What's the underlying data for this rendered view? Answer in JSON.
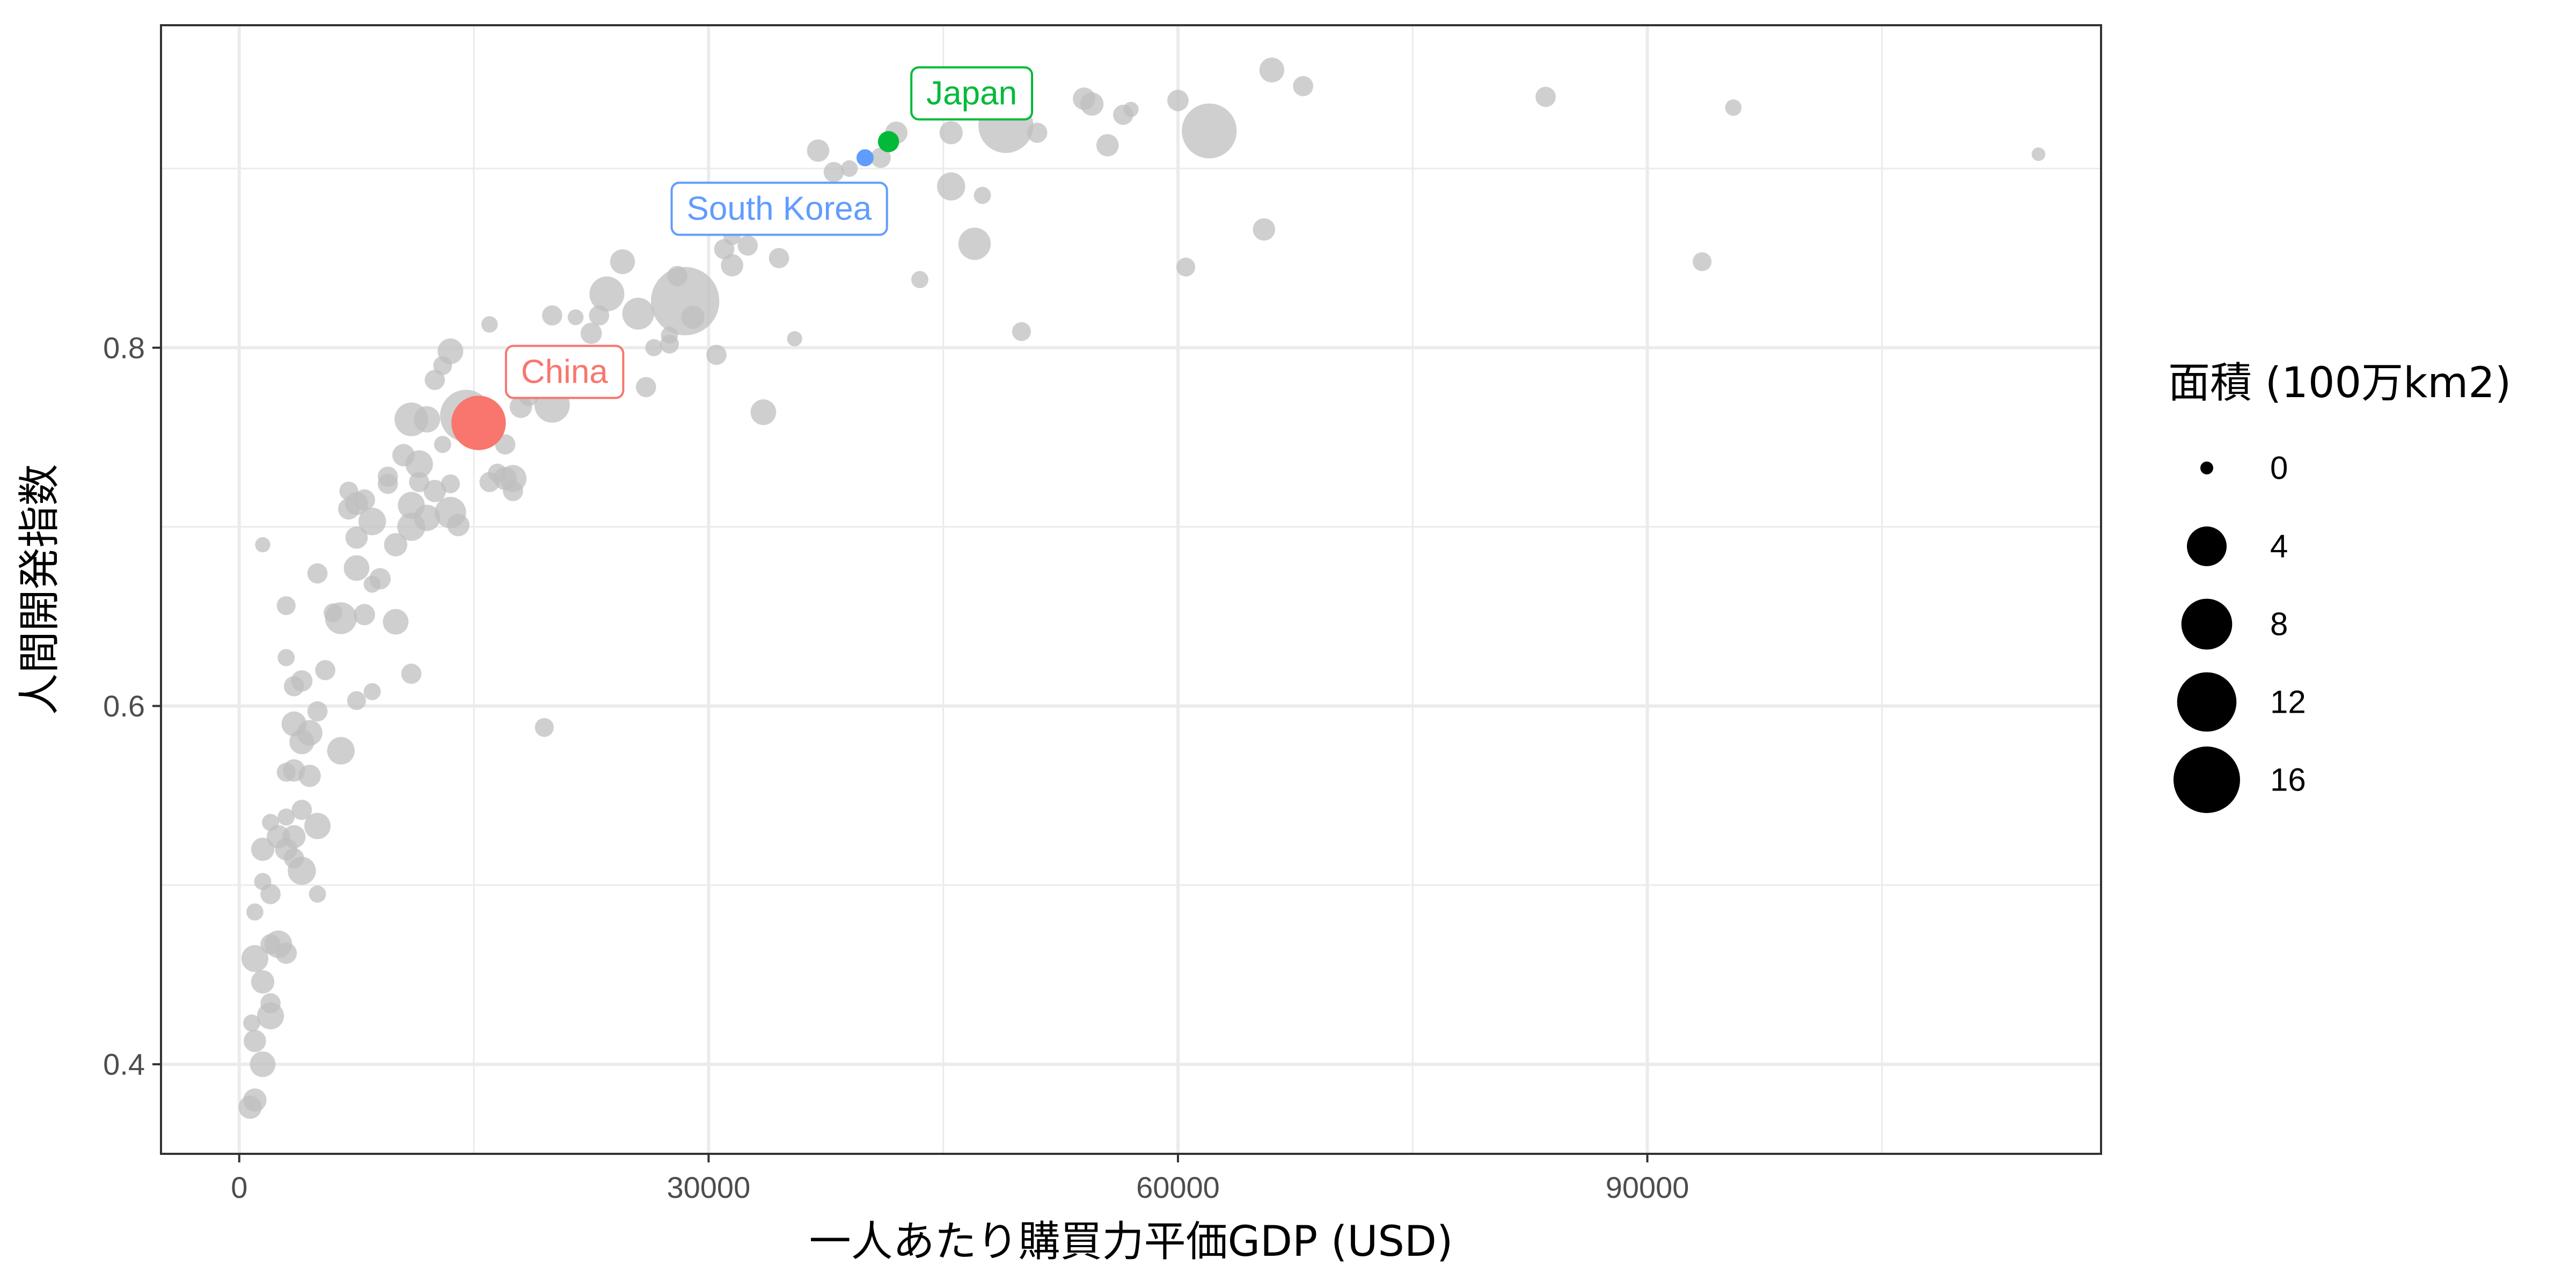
{
  "chart_data": {
    "type": "scatter",
    "xlabel": "一人あたり購買力平価GDP (USD)",
    "ylabel": "人間開発指数",
    "xlim": [
      -5000,
      119000
    ],
    "ylim": [
      0.35,
      0.98
    ],
    "x_ticks": [
      0,
      30000,
      60000,
      90000
    ],
    "x_tick_labels": [
      "0",
      "30000",
      "60000",
      "90000"
    ],
    "y_ticks": [
      0.4,
      0.6,
      0.8
    ],
    "y_tick_labels": [
      "0.4",
      "0.6",
      "0.8"
    ],
    "grid": true,
    "legend": {
      "title": "面積 (100万km2)",
      "position": "right",
      "entries": [
        {
          "label": "0",
          "value": 0
        },
        {
          "label": "4",
          "value": 4
        },
        {
          "label": "8",
          "value": 8
        },
        {
          "label": "12",
          "value": 12
        },
        {
          "label": "16",
          "value": 16
        }
      ]
    },
    "colors": {
      "background_point": "#bfbfbf",
      "China": "#F8766D",
      "Japan": "#00BA38",
      "South Korea": "#619CFF"
    },
    "highlighted": [
      {
        "label": "China",
        "x": 15300,
        "y": 0.758,
        "area": 9.6
      },
      {
        "label": "Japan",
        "x": 41500,
        "y": 0.915,
        "area": 0.38
      },
      {
        "label": "South Korea",
        "x": 40000,
        "y": 0.906,
        "area": 0.1
      }
    ],
    "points": [
      {
        "x": 115000,
        "y": 0.908,
        "area": 0.003
      },
      {
        "x": 95500,
        "y": 0.934,
        "area": 0.07
      },
      {
        "x": 93500,
        "y": 0.848,
        "area": 0.2
      },
      {
        "x": 83500,
        "y": 0.94,
        "area": 0.3
      },
      {
        "x": 68000,
        "y": 0.946,
        "area": 0.3
      },
      {
        "x": 66000,
        "y": 0.955,
        "area": 0.8
      },
      {
        "x": 65500,
        "y": 0.866,
        "area": 0.5
      },
      {
        "x": 62000,
        "y": 0.921,
        "area": 9.8
      },
      {
        "x": 60500,
        "y": 0.845,
        "area": 0.2
      },
      {
        "x": 60000,
        "y": 0.938,
        "area": 0.4
      },
      {
        "x": 57000,
        "y": 0.933,
        "area": 0.03
      },
      {
        "x": 56500,
        "y": 0.93,
        "area": 0.3
      },
      {
        "x": 55500,
        "y": 0.913,
        "area": 0.5
      },
      {
        "x": 54500,
        "y": 0.936,
        "area": 0.6
      },
      {
        "x": 54000,
        "y": 0.939,
        "area": 0.5
      },
      {
        "x": 51000,
        "y": 0.92,
        "area": 0.3
      },
      {
        "x": 50000,
        "y": 0.809,
        "area": 0.2
      },
      {
        "x": 49000,
        "y": 0.924,
        "area": 9.8
      },
      {
        "x": 47500,
        "y": 0.885,
        "area": 0.1
      },
      {
        "x": 47000,
        "y": 0.858,
        "area": 2.1
      },
      {
        "x": 45500,
        "y": 0.89,
        "area": 1.3
      },
      {
        "x": 45500,
        "y": 0.92,
        "area": 0.6
      },
      {
        "x": 43500,
        "y": 0.838,
        "area": 0.1
      },
      {
        "x": 42000,
        "y": 0.92,
        "area": 0.5
      },
      {
        "x": 41000,
        "y": 0.906,
        "area": 0.3
      },
      {
        "x": 39000,
        "y": 0.9,
        "area": 0.08
      },
      {
        "x": 38000,
        "y": 0.898,
        "area": 0.3
      },
      {
        "x": 37000,
        "y": 0.91,
        "area": 0.5
      },
      {
        "x": 35500,
        "y": 0.805,
        "area": 0.03
      },
      {
        "x": 34500,
        "y": 0.85,
        "area": 0.3
      },
      {
        "x": 33500,
        "y": 0.764,
        "area": 0.9
      },
      {
        "x": 32500,
        "y": 0.857,
        "area": 0.3
      },
      {
        "x": 31500,
        "y": 0.846,
        "area": 0.5
      },
      {
        "x": 31500,
        "y": 0.862,
        "area": 0.1
      },
      {
        "x": 31000,
        "y": 0.855,
        "area": 0.3
      },
      {
        "x": 30500,
        "y": 0.796,
        "area": 0.3
      },
      {
        "x": 29000,
        "y": 0.817,
        "area": 0.6
      },
      {
        "x": 28500,
        "y": 0.826,
        "area": 17.1
      },
      {
        "x": 28000,
        "y": 0.84,
        "area": 0.3
      },
      {
        "x": 27500,
        "y": 0.807,
        "area": 0.1
      },
      {
        "x": 27500,
        "y": 0.802,
        "area": 0.2
      },
      {
        "x": 26500,
        "y": 0.8,
        "area": 0.1
      },
      {
        "x": 26000,
        "y": 0.778,
        "area": 0.3
      },
      {
        "x": 25500,
        "y": 0.819,
        "area": 2.0
      },
      {
        "x": 24500,
        "y": 0.848,
        "area": 0.8
      },
      {
        "x": 23500,
        "y": 0.83,
        "area": 2.7
      },
      {
        "x": 23000,
        "y": 0.818,
        "area": 0.3
      },
      {
        "x": 22500,
        "y": 0.808,
        "area": 0.4
      },
      {
        "x": 21500,
        "y": 0.817,
        "area": 0.05
      },
      {
        "x": 20000,
        "y": 0.818,
        "area": 0.3
      },
      {
        "x": 20000,
        "y": 0.768,
        "area": 2.8
      },
      {
        "x": 19500,
        "y": 0.588,
        "area": 0.2
      },
      {
        "x": 18500,
        "y": 0.773,
        "area": 0.3
      },
      {
        "x": 18000,
        "y": 0.767,
        "area": 0.5
      },
      {
        "x": 17500,
        "y": 0.72,
        "area": 0.3
      },
      {
        "x": 17500,
        "y": 0.727,
        "area": 1.1
      },
      {
        "x": 17000,
        "y": 0.727,
        "area": 0.6
      },
      {
        "x": 17000,
        "y": 0.746,
        "area": 0.3
      },
      {
        "x": 16500,
        "y": 0.73,
        "area": 0.2
      },
      {
        "x": 16000,
        "y": 0.725,
        "area": 0.3
      },
      {
        "x": 16000,
        "y": 0.813,
        "area": 0.07
      },
      {
        "x": 15500,
        "y": 0.765,
        "area": 0.4
      },
      {
        "x": 14500,
        "y": 0.762,
        "area": 8.5
      },
      {
        "x": 14000,
        "y": 0.701,
        "area": 0.5
      },
      {
        "x": 13500,
        "y": 0.708,
        "area": 1.9
      },
      {
        "x": 13500,
        "y": 0.724,
        "area": 0.2
      },
      {
        "x": 13500,
        "y": 0.798,
        "area": 0.9
      },
      {
        "x": 13000,
        "y": 0.79,
        "area": 0.2
      },
      {
        "x": 13000,
        "y": 0.746,
        "area": 0.1
      },
      {
        "x": 12500,
        "y": 0.782,
        "area": 0.3
      },
      {
        "x": 12500,
        "y": 0.72,
        "area": 0.5
      },
      {
        "x": 12000,
        "y": 0.76,
        "area": 1.0
      },
      {
        "x": 12000,
        "y": 0.705,
        "area": 1.0
      },
      {
        "x": 11500,
        "y": 0.735,
        "area": 1.2
      },
      {
        "x": 11500,
        "y": 0.725,
        "area": 0.3
      },
      {
        "x": 11000,
        "y": 0.76,
        "area": 2.4
      },
      {
        "x": 11000,
        "y": 0.618,
        "area": 0.3
      },
      {
        "x": 11000,
        "y": 0.712,
        "area": 1.1
      },
      {
        "x": 11000,
        "y": 0.7,
        "area": 1.3
      },
      {
        "x": 10500,
        "y": 0.74,
        "area": 0.5
      },
      {
        "x": 10000,
        "y": 0.69,
        "area": 0.6
      },
      {
        "x": 10000,
        "y": 0.647,
        "area": 0.9
      },
      {
        "x": 9500,
        "y": 0.728,
        "area": 0.3
      },
      {
        "x": 9500,
        "y": 0.724,
        "area": 0.3
      },
      {
        "x": 9000,
        "y": 0.671,
        "area": 0.4
      },
      {
        "x": 8500,
        "y": 0.703,
        "area": 1.2
      },
      {
        "x": 8500,
        "y": 0.668,
        "area": 0.1
      },
      {
        "x": 8500,
        "y": 0.608,
        "area": 0.1
      },
      {
        "x": 8000,
        "y": 0.715,
        "area": 0.4
      },
      {
        "x": 8000,
        "y": 0.651,
        "area": 0.4
      },
      {
        "x": 7500,
        "y": 0.713,
        "area": 0.6
      },
      {
        "x": 7500,
        "y": 0.694,
        "area": 0.5
      },
      {
        "x": 7500,
        "y": 0.677,
        "area": 0.9
      },
      {
        "x": 7500,
        "y": 0.603,
        "area": 0.2
      },
      {
        "x": 7000,
        "y": 0.72,
        "area": 0.2
      },
      {
        "x": 7000,
        "y": 0.71,
        "area": 0.4
      },
      {
        "x": 6500,
        "y": 0.649,
        "area": 2.0
      },
      {
        "x": 6500,
        "y": 0.575,
        "area": 1.2
      },
      {
        "x": 6000,
        "y": 0.652,
        "area": 0.2
      },
      {
        "x": 5500,
        "y": 0.62,
        "area": 0.3
      },
      {
        "x": 5000,
        "y": 0.674,
        "area": 0.3
      },
      {
        "x": 5000,
        "y": 0.597,
        "area": 0.3
      },
      {
        "x": 5000,
        "y": 0.533,
        "area": 1.0
      },
      {
        "x": 5000,
        "y": 0.495,
        "area": 0.1
      },
      {
        "x": 4500,
        "y": 0.585,
        "area": 0.9
      },
      {
        "x": 4500,
        "y": 0.561,
        "area": 0.5
      },
      {
        "x": 4000,
        "y": 0.614,
        "area": 0.4
      },
      {
        "x": 4000,
        "y": 0.58,
        "area": 0.8
      },
      {
        "x": 4000,
        "y": 0.542,
        "area": 0.3
      },
      {
        "x": 4000,
        "y": 0.508,
        "area": 1.3
      },
      {
        "x": 3500,
        "y": 0.611,
        "area": 0.3
      },
      {
        "x": 3500,
        "y": 0.59,
        "area": 0.8
      },
      {
        "x": 3500,
        "y": 0.564,
        "area": 0.5
      },
      {
        "x": 3500,
        "y": 0.527,
        "area": 0.6
      },
      {
        "x": 3500,
        "y": 0.515,
        "area": 0.3
      },
      {
        "x": 3000,
        "y": 0.656,
        "area": 0.2
      },
      {
        "x": 3000,
        "y": 0.627,
        "area": 0.1
      },
      {
        "x": 3000,
        "y": 0.563,
        "area": 0.2
      },
      {
        "x": 3000,
        "y": 0.538,
        "area": 0.1
      },
      {
        "x": 3000,
        "y": 0.52,
        "area": 0.5
      },
      {
        "x": 3000,
        "y": 0.462,
        "area": 0.4
      },
      {
        "x": 2500,
        "y": 0.527,
        "area": 0.6
      },
      {
        "x": 2500,
        "y": 0.467,
        "area": 1.2
      },
      {
        "x": 2000,
        "y": 0.535,
        "area": 0.1
      },
      {
        "x": 2000,
        "y": 0.495,
        "area": 0.3
      },
      {
        "x": 2000,
        "y": 0.467,
        "area": 0.3
      },
      {
        "x": 2000,
        "y": 0.434,
        "area": 0.3
      },
      {
        "x": 2000,
        "y": 0.427,
        "area": 1.1
      },
      {
        "x": 1500,
        "y": 0.69,
        "area": 0.03
      },
      {
        "x": 1500,
        "y": 0.52,
        "area": 0.6
      },
      {
        "x": 1500,
        "y": 0.502,
        "area": 0.1
      },
      {
        "x": 1500,
        "y": 0.446,
        "area": 0.6
      },
      {
        "x": 1500,
        "y": 0.4,
        "area": 0.9
      },
      {
        "x": 1000,
        "y": 0.485,
        "area": 0.1
      },
      {
        "x": 1000,
        "y": 0.459,
        "area": 1.1
      },
      {
        "x": 1000,
        "y": 0.413,
        "area": 0.5
      },
      {
        "x": 1000,
        "y": 0.38,
        "area": 0.6
      },
      {
        "x": 800,
        "y": 0.423,
        "area": 0.1
      },
      {
        "x": 700,
        "y": 0.376,
        "area": 0.6
      }
    ]
  }
}
